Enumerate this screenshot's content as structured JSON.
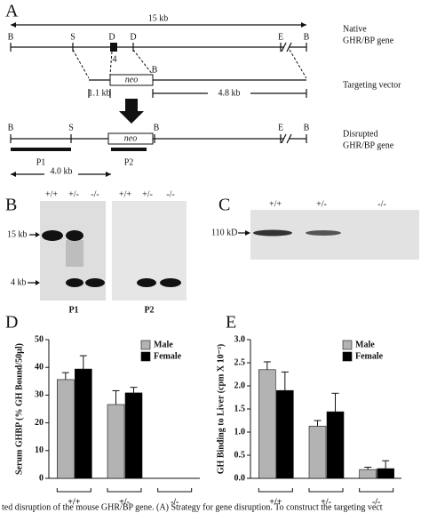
{
  "panel_a": {
    "letter": "A",
    "scale": "15 kb",
    "native_label": [
      "Native",
      "GHR/BP gene"
    ],
    "native_sites": [
      "B",
      "S",
      "D",
      "D",
      "E",
      "B"
    ],
    "exon": "4",
    "neo": "neo",
    "vector_site": "B",
    "vector_label": "Targeting vector",
    "arm_lengths": [
      "1.1 kb",
      "4.8 kb"
    ],
    "disrupted_sites": [
      "B",
      "S",
      "B",
      "E",
      "B"
    ],
    "disrupted_label": [
      "Disrupted",
      "GHR/BP gene"
    ],
    "probes": [
      "P1",
      "P2"
    ],
    "fragment": "4.0 kb"
  },
  "panel_b": {
    "letter": "B",
    "lanes": [
      "+/+",
      "+/-",
      "-/-",
      "+/+",
      "+/-",
      "-/-"
    ],
    "markers": [
      "15 kb",
      "4 kb"
    ],
    "probes": [
      "P1",
      "P2"
    ]
  },
  "panel_c": {
    "letter": "C",
    "lanes": [
      "+/+",
      "+/-",
      "-/-"
    ],
    "marker": "110 kD"
  },
  "chart_data": [
    {
      "type": "bar",
      "letter": "D",
      "ylabel": "Serum GHBP (% GH Bound/50µl)",
      "categories": [
        "+/+",
        "+/-",
        "-/-"
      ],
      "series": [
        {
          "name": "Male",
          "color": "#b3b3b3",
          "values": [
            35.6,
            26.6,
            null
          ],
          "errors": [
            2.5,
            5,
            null
          ]
        },
        {
          "name": "Female",
          "color": "#000000",
          "values": [
            39.4,
            30.8,
            null
          ],
          "errors": [
            4.8,
            2,
            null
          ]
        }
      ],
      "ylim": [
        0,
        50
      ],
      "yticks": [
        0,
        10,
        20,
        30,
        40,
        50
      ],
      "legend": "upper right"
    },
    {
      "type": "bar",
      "letter": "E",
      "ylabel": "GH Binding to Liver (cpm X 10⁻³)",
      "categories": [
        "+/+",
        "+/-",
        "-/-"
      ],
      "series": [
        {
          "name": "Male",
          "color": "#b3b3b3",
          "values": [
            2.35,
            1.13,
            0.19
          ],
          "errors": [
            0.17,
            0.12,
            0.05
          ]
        },
        {
          "name": "Female",
          "color": "#000000",
          "values": [
            1.9,
            1.44,
            0.21
          ],
          "errors": [
            0.4,
            0.4,
            0.17
          ]
        }
      ],
      "ylim": [
        0,
        3
      ],
      "yticks": [
        {
          "value": 0,
          "label": "0.0"
        },
        0.5,
        {
          "value": 1,
          "label": "1.0"
        },
        1.5,
        {
          "value": 2,
          "label": "2.0"
        },
        2.5,
        {
          "value": 3,
          "label": "3.0"
        }
      ],
      "legend": "upper right"
    }
  ],
  "caption": "ted disruption of the mouse GHR/BP gene. (A) Strategy for gene disruption. To construct the targeting vect"
}
